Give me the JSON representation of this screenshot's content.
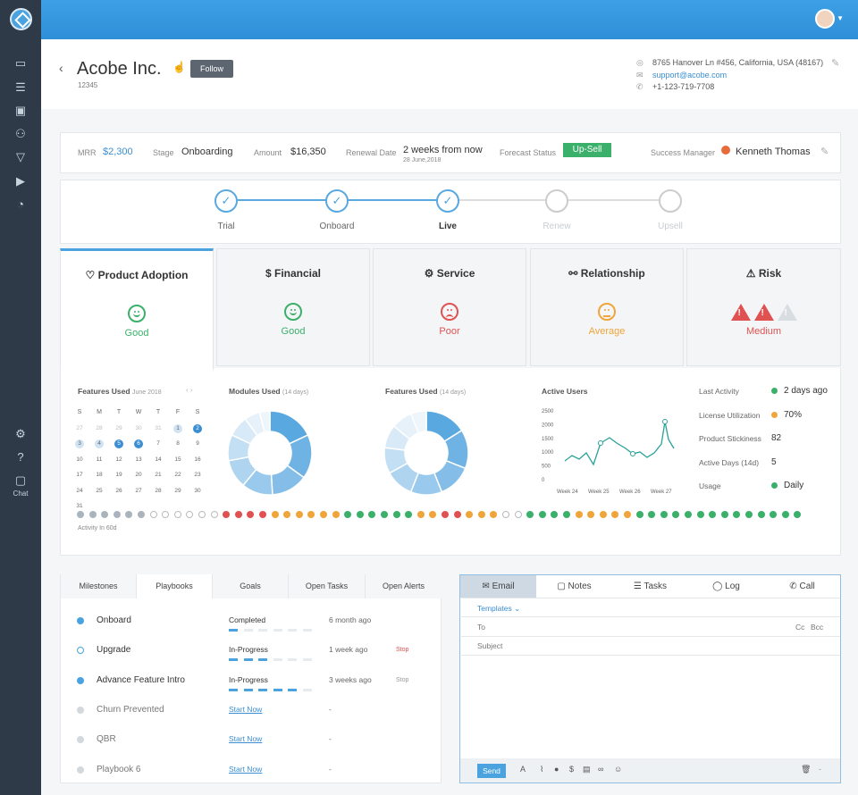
{
  "sidebar": {
    "chat_label": "Chat"
  },
  "header": {
    "back": "‹",
    "company": "Acobe Inc.",
    "company_id": "12345",
    "follow": "Follow",
    "address": "8765 Hanover Ln #456, California, USA (48167)",
    "email": "support@acobe.com",
    "phone": "+1-123-719-7708"
  },
  "metrics": {
    "mrr_label": "MRR",
    "mrr": "$2,300",
    "stage_label": "Stage",
    "stage": "Onboarding",
    "amount_label": "Amount",
    "amount": "$16,350",
    "renewal_label": "Renewal Date",
    "renewal": "2 weeks from now",
    "renewal_date": "28 June,2018",
    "forecast_label": "Forecast Status",
    "forecast": "Up-Sell",
    "manager_label": "Success Manager",
    "manager": "Kenneth Thomas"
  },
  "stages": [
    {
      "label": "Trial",
      "done": true
    },
    {
      "label": "Onboard",
      "done": true
    },
    {
      "label": "Live",
      "done": true
    },
    {
      "label": "Renew",
      "done": false
    },
    {
      "label": "Upsell",
      "done": false
    }
  ],
  "health": [
    {
      "title": "Product Adoption",
      "icon": "heart-pulse-icon",
      "status": "Good",
      "mood": "smile",
      "color": "#3bb06a"
    },
    {
      "title": "Financial",
      "icon": "dollar-icon",
      "status": "Good",
      "mood": "smile",
      "color": "#3bb06a"
    },
    {
      "title": "Service",
      "icon": "gear-icon",
      "status": "Poor",
      "mood": "frown",
      "color": "#e05252"
    },
    {
      "title": "Relationship",
      "icon": "handshake-icon",
      "status": "Average",
      "mood": "flat",
      "color": "#f0a53a"
    },
    {
      "title": "Risk",
      "icon": "warning-icon",
      "status": "Medium",
      "mood": "warning",
      "color": "#e05252"
    }
  ],
  "features_cal": {
    "title": "Features Used",
    "month": "June 2018",
    "days": [
      "S",
      "M",
      "T",
      "W",
      "T",
      "F",
      "S"
    ],
    "cells": [
      "27",
      "28",
      "29",
      "30",
      "31",
      "1",
      "2",
      "3",
      "4",
      "5",
      "6",
      "7",
      "8",
      "9",
      "10",
      "11",
      "12",
      "13",
      "14",
      "15",
      "16",
      "17",
      "18",
      "19",
      "20",
      "21",
      "22",
      "23",
      "24",
      "25",
      "26",
      "27",
      "28",
      "29",
      "30",
      "31"
    ]
  },
  "modules": {
    "title": "Modules Used",
    "sub": "(14 days)"
  },
  "features": {
    "title": "Features Used",
    "sub": "(14 days)"
  },
  "active_users": {
    "title": "Active Users",
    "yticks": [
      "2500",
      "2000",
      "1500",
      "1000",
      "500",
      "0"
    ],
    "xticks": [
      "Week 24",
      "Week 25",
      "Week 26",
      "Week 27"
    ]
  },
  "activity": {
    "label": "Activity In 60d",
    "dots": [
      "#aab4be",
      "#aab4be",
      "#aab4be",
      "#aab4be",
      "#aab4be",
      "#aab4be",
      "h",
      "h",
      "h",
      "h",
      "h",
      "h",
      "#e05252",
      "#e05252",
      "#e05252",
      "#e05252",
      "#f0a53a",
      "#f0a53a",
      "#f0a53a",
      "#f0a53a",
      "#f0a53a",
      "#f0a53a",
      "#3bb06a",
      "#3bb06a",
      "#3bb06a",
      "#3bb06a",
      "#3bb06a",
      "#3bb06a",
      "#f0a53a",
      "#f0a53a",
      "#e05252",
      "#e05252",
      "#f0a53a",
      "#f0a53a",
      "#f0a53a",
      "h",
      "h",
      "#3bb06a",
      "#3bb06a",
      "#3bb06a",
      "#3bb06a",
      "#f0a53a",
      "#f0a53a",
      "#f0a53a",
      "#f0a53a",
      "#f0a53a",
      "#3bb06a",
      "#3bb06a",
      "#3bb06a",
      "#3bb06a",
      "#3bb06a",
      "#3bb06a",
      "#3bb06a",
      "#3bb06a",
      "#3bb06a",
      "#3bb06a",
      "#3bb06a",
      "#3bb06a",
      "#3bb06a",
      "#3bb06a"
    ]
  },
  "stats": [
    {
      "label": "Last Activity",
      "value": "2 days ago",
      "dot": "#3bb06a"
    },
    {
      "label": "License Utilization",
      "value": "70%",
      "dot": "#f0a53a"
    },
    {
      "label": "Product Stickiness",
      "value": "82",
      "dot": ""
    },
    {
      "label": "Active Days (14d)",
      "value": "5",
      "dot": ""
    },
    {
      "label": "Usage",
      "value": "Daily",
      "dot": "#3bb06a"
    }
  ],
  "tabs": [
    "Milestones",
    "Playbooks",
    "Goals",
    "Open Tasks",
    "Open Alerts"
  ],
  "playbooks": [
    {
      "name": "Onboard",
      "status": "Completed",
      "time": "6 month ago",
      "stop": "",
      "dot": "filled",
      "progress": 0
    },
    {
      "name": "Upgrade",
      "status": "In-Progress",
      "time": "1 week ago",
      "stop": "Stop",
      "dot": "hollow",
      "progress": 3
    },
    {
      "name": "Advance Feature Intro",
      "status": "In-Progress",
      "time": "3 weeks ago",
      "stop": "Stop",
      "dot": "filled",
      "progress": 5
    },
    {
      "name": "Churn Prevented",
      "status": "Start Now",
      "time": "-",
      "stop": "",
      "dot": "grey",
      "progress": -1
    },
    {
      "name": "QBR",
      "status": "Start Now",
      "time": "-",
      "stop": "",
      "dot": "grey",
      "progress": -1
    },
    {
      "name": "Playbook 6",
      "status": "Start Now",
      "time": "-",
      "stop": "",
      "dot": "grey",
      "progress": -1
    }
  ],
  "composer": {
    "tabs": [
      "Email",
      "Notes",
      "Tasks",
      "Log",
      "Call"
    ],
    "templates": "Templates",
    "to": "To",
    "cc": "Cc",
    "bcc": "Bcc",
    "subject": "Subject",
    "send": "Send"
  }
}
